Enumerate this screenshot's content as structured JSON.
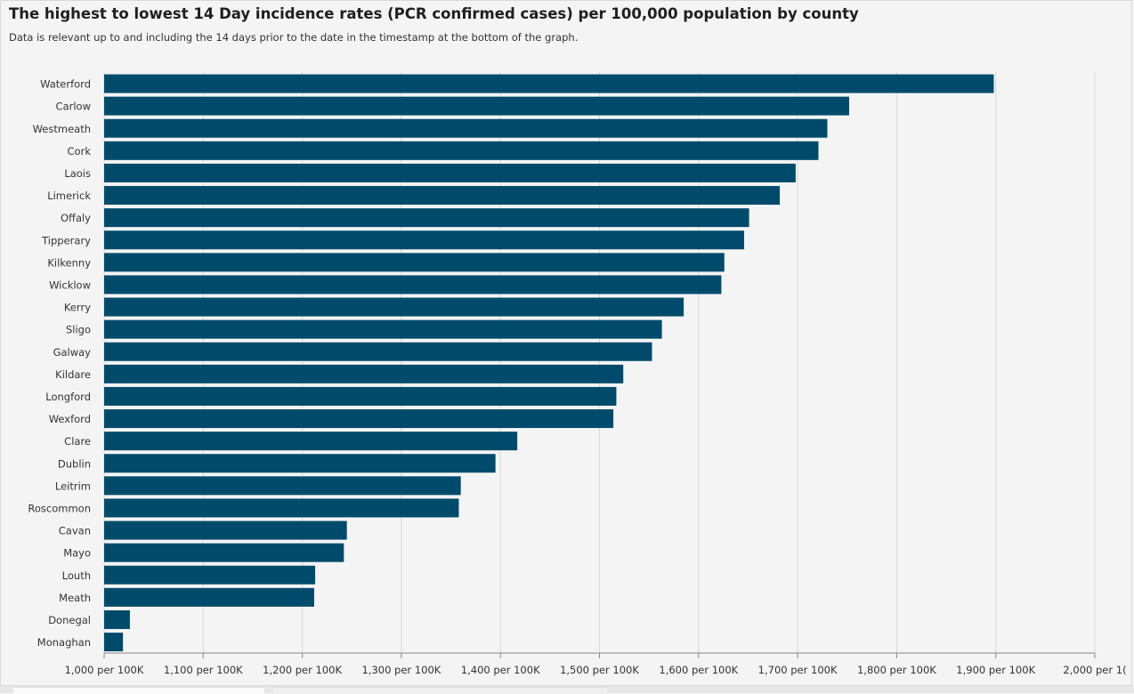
{
  "header": {
    "title": "The highest to lowest 14 Day incidence rates (PCR confirmed cases) per 100,000 population by county",
    "subtitle": "Data is relevant up to and including the 14 days prior to the date in the timestamp at the bottom of the graph."
  },
  "colors": {
    "bar": "#004b6b",
    "grid": "#d9d9d9",
    "axis": "#888888",
    "background": "#f4f4f4",
    "label": "#333333"
  },
  "chart_data": {
    "type": "bar",
    "orientation": "horizontal",
    "title": "The highest to lowest 14 Day incidence rates (PCR confirmed cases) per 100,000 population by county",
    "subtitle": "Data is relevant up to and including the 14 days prior to the date in the timestamp at the bottom of the graph.",
    "xlabel": "",
    "ylabel": "",
    "xlim": [
      1000,
      2000
    ],
    "grid": true,
    "categories": [
      "Waterford",
      "Carlow",
      "Westmeath",
      "Cork",
      "Laois",
      "Limerick",
      "Offaly",
      "Tipperary",
      "Kilkenny",
      "Wicklow",
      "Kerry",
      "Sligo",
      "Galway",
      "Kildare",
      "Longford",
      "Wexford",
      "Clare",
      "Dublin",
      "Leitrim",
      "Roscommon",
      "Cavan",
      "Mayo",
      "Louth",
      "Meath",
      "Donegal",
      "Monaghan"
    ],
    "values": [
      1898,
      1752,
      1730,
      1721,
      1698,
      1682,
      1651,
      1646,
      1626,
      1623,
      1585,
      1563,
      1553,
      1524,
      1517,
      1514,
      1417,
      1395,
      1360,
      1358,
      1245,
      1242,
      1213,
      1212,
      1026,
      1019
    ],
    "tick_values": [
      1000,
      1100,
      1200,
      1300,
      1400,
      1500,
      1600,
      1700,
      1800,
      1900,
      2000
    ],
    "tick_labels": [
      "1,000 per 100K",
      "1,100 per 100K",
      "1,200 per 100K",
      "1,300 per 100K",
      "1,400 per 100K",
      "1,500 per 100K",
      "1,600 per 100K",
      "1,700 per 100K",
      "1,800 per 100K",
      "1,900 per 100K",
      "2,000 per 1("
    ]
  }
}
